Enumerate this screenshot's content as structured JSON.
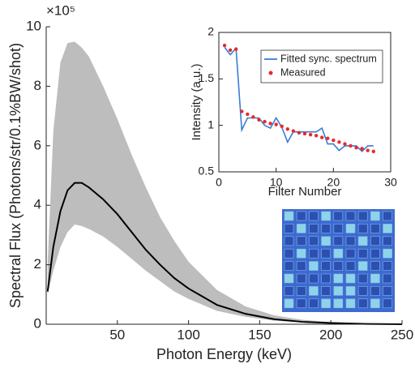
{
  "chart_data": [
    {
      "type": "line",
      "xlabel": "Photon Energy (keV)",
      "ylabel": "Spectral Flux (Photons/str/0.1%BW/shot)",
      "y_multiplier": "×10⁵",
      "xlim": [
        0,
        250
      ],
      "xticks": [
        50,
        100,
        150,
        200,
        250
      ],
      "ylim": [
        0,
        10
      ],
      "yticks": [
        0,
        2,
        4,
        6,
        8,
        10
      ],
      "x": [
        1,
        5,
        10,
        15,
        20,
        25,
        30,
        40,
        50,
        60,
        70,
        80,
        90,
        100,
        120,
        140,
        160,
        180,
        200,
        225,
        250
      ],
      "band": {
        "color": "#bdbdbd",
        "upper": [
          2.0,
          6.5,
          8.8,
          9.45,
          9.5,
          9.3,
          9.0,
          8.0,
          6.9,
          5.7,
          4.6,
          3.6,
          2.8,
          2.1,
          1.15,
          0.6,
          0.3,
          0.15,
          0.07,
          0.02,
          0
        ],
        "lower": [
          1.0,
          1.8,
          2.6,
          3.1,
          3.35,
          3.3,
          3.2,
          2.95,
          2.6,
          2.2,
          1.8,
          1.45,
          1.1,
          0.85,
          0.45,
          0.25,
          0.12,
          0.06,
          0.03,
          0.01,
          0
        ]
      },
      "series": [
        {
          "color": "#000000",
          "mode": "line",
          "values": [
            1.1,
            2.6,
            3.8,
            4.5,
            4.75,
            4.75,
            4.6,
            4.2,
            3.7,
            3.1,
            2.5,
            2.0,
            1.55,
            1.2,
            0.65,
            0.35,
            0.17,
            0.08,
            0.04,
            0.01,
            0
          ]
        }
      ]
    },
    {
      "type": "line",
      "xlabel": "Filter Number",
      "ylabel": "Intensity (a.u.)",
      "xlim": [
        0,
        30
      ],
      "xticks": [
        0,
        10,
        20,
        30
      ],
      "ylim": [
        0.5,
        2
      ],
      "yticks": [
        0.5,
        1,
        1.5,
        2
      ],
      "legend": "upper right",
      "x": [
        1,
        2,
        3,
        4,
        5,
        6,
        7,
        8,
        9,
        10,
        11,
        12,
        13,
        14,
        15,
        16,
        17,
        18,
        19,
        20,
        21,
        22,
        23,
        24,
        25,
        26,
        27
      ],
      "series": [
        {
          "name": "Fitted sync. spectrum",
          "color": "#3a7bd5",
          "mode": "line",
          "values": [
            1.84,
            1.76,
            1.83,
            0.95,
            1.08,
            1.08,
            1.08,
            1.0,
            0.97,
            1.08,
            0.98,
            0.82,
            0.93,
            0.93,
            0.93,
            0.93,
            0.93,
            0.97,
            0.8,
            0.8,
            0.73,
            0.78,
            0.78,
            0.78,
            0.72,
            0.78,
            0.78
          ]
        },
        {
          "name": "Measured",
          "color": "#e8292b",
          "mode": "markers",
          "values": [
            1.86,
            1.81,
            1.82,
            1.15,
            1.12,
            1.09,
            1.06,
            1.04,
            1.02,
            1.01,
            0.99,
            0.96,
            0.94,
            0.92,
            0.91,
            0.9,
            0.89,
            0.87,
            0.86,
            0.84,
            0.82,
            0.8,
            0.78,
            0.76,
            0.75,
            0.73,
            0.72
          ]
        }
      ]
    }
  ]
}
